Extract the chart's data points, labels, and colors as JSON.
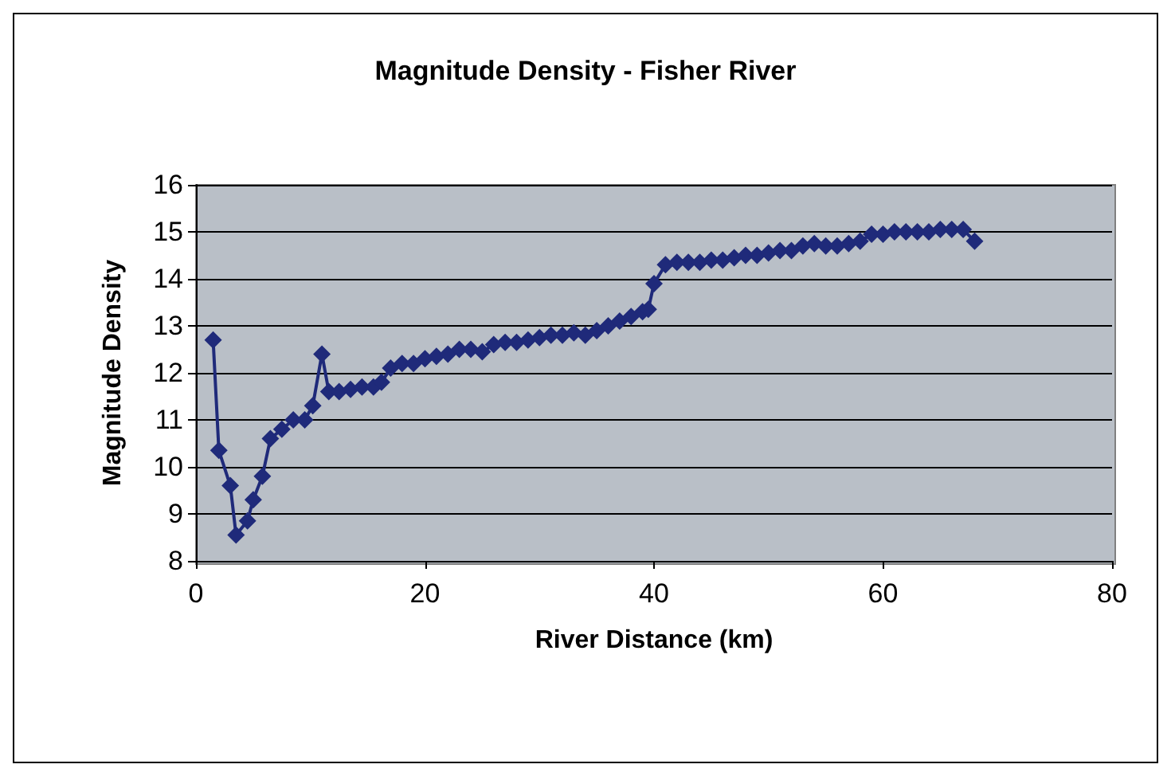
{
  "chart_data": {
    "type": "line",
    "title": "Magnitude Density - Fisher River",
    "xlabel": "River Distance (km)",
    "ylabel": "Magnitude Density",
    "x": [
      1.5,
      2,
      3,
      3.5,
      4.5,
      5,
      5.8,
      6.5,
      7.5,
      8.5,
      9.5,
      10.2,
      11,
      11.6,
      12.5,
      13.5,
      14.5,
      15.5,
      16.2,
      17,
      18,
      19,
      20,
      21,
      22,
      23,
      24,
      25,
      26,
      27,
      28,
      29,
      30,
      31,
      32,
      33,
      34,
      35,
      36,
      37,
      38,
      39,
      39.5,
      40,
      41,
      42,
      43,
      44,
      45,
      46,
      47,
      48,
      49,
      50,
      51,
      52,
      53,
      54,
      55,
      56,
      57,
      58,
      59,
      60,
      61,
      62,
      63,
      64,
      65,
      66,
      67,
      68
    ],
    "series": [
      {
        "color": "#1f2a7a",
        "values": [
          12.7,
          10.35,
          9.6,
          8.55,
          8.85,
          9.3,
          9.8,
          10.6,
          10.8,
          11.0,
          11.0,
          11.3,
          12.4,
          11.6,
          11.6,
          11.65,
          11.7,
          11.7,
          11.8,
          12.1,
          12.2,
          12.2,
          12.3,
          12.35,
          12.4,
          12.5,
          12.5,
          12.45,
          12.6,
          12.65,
          12.65,
          12.7,
          12.75,
          12.8,
          12.8,
          12.85,
          12.8,
          12.9,
          13.0,
          13.1,
          13.2,
          13.3,
          13.35,
          13.9,
          14.3,
          14.35,
          14.35,
          14.35,
          14.4,
          14.4,
          14.45,
          14.5,
          14.5,
          14.55,
          14.6,
          14.6,
          14.7,
          14.75,
          14.7,
          14.7,
          14.75,
          14.8,
          14.95,
          14.95,
          15.0,
          15.0,
          15.0,
          15.0,
          15.05,
          15.05,
          15.05,
          14.8
        ]
      }
    ],
    "xlim": [
      0,
      80
    ],
    "xticks": [
      0,
      20,
      40,
      60,
      80
    ],
    "ylim": [
      8,
      16
    ],
    "yticks": [
      8,
      9,
      10,
      11,
      12,
      13,
      14,
      15,
      16
    ],
    "grid": "y",
    "marker": "diamond",
    "line_style": "solid"
  }
}
